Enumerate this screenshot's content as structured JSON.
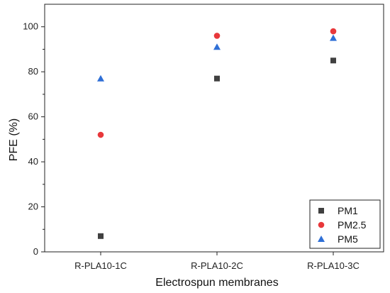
{
  "chart_data": {
    "type": "scatter",
    "title": "",
    "xlabel": "Electrospun membranes",
    "ylabel": "PFE (%)",
    "categories": [
      "R-PLA10-1C",
      "R-PLA10-2C",
      "R-PLA10-3C"
    ],
    "ylim": [
      0,
      110
    ],
    "yticks": [
      0,
      20,
      40,
      60,
      80,
      100
    ],
    "grid": false,
    "legend_position": "bottom-right",
    "series": [
      {
        "name": "PM1",
        "marker": "square",
        "color": "#404040",
        "values": [
          7,
          77,
          85
        ]
      },
      {
        "name": "PM2.5",
        "marker": "circle",
        "color": "#e8383b",
        "values": [
          52,
          96,
          98
        ]
      },
      {
        "name": "PM5",
        "marker": "triangle",
        "color": "#2f6fd6",
        "values": [
          77,
          91,
          95
        ]
      }
    ]
  }
}
